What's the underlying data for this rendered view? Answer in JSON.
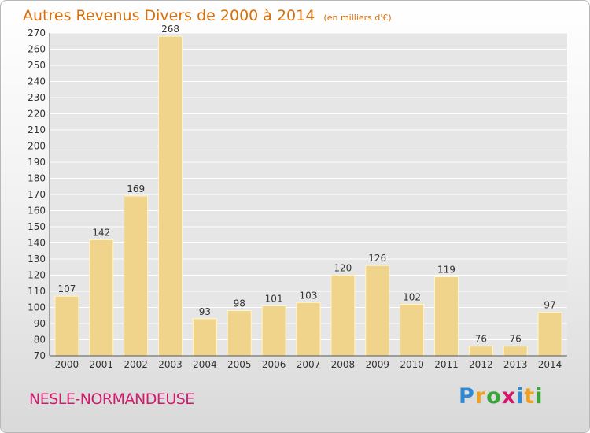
{
  "chart_data": {
    "type": "bar",
    "title": "Autres Revenus Divers de 2000 à 2014",
    "subtitle": "(en milliers d'€)",
    "categories": [
      "2000",
      "2001",
      "2002",
      "2003",
      "2004",
      "2005",
      "2006",
      "2007",
      "2008",
      "2009",
      "2010",
      "2011",
      "2012",
      "2013",
      "2014"
    ],
    "values": [
      107,
      142,
      169,
      268,
      93,
      98,
      101,
      103,
      120,
      126,
      102,
      119,
      76,
      76,
      97
    ],
    "ylim": [
      70,
      270
    ],
    "yticks": [
      70,
      80,
      90,
      100,
      110,
      120,
      130,
      140,
      150,
      160,
      170,
      180,
      190,
      200,
      210,
      220,
      230,
      240,
      250,
      260,
      270
    ],
    "grid": true,
    "data_labels": true,
    "colors": {
      "bar": "#f0d48c",
      "bar_edge": "#fff6c8",
      "grid": "#ffffff",
      "text": "#333333"
    }
  },
  "footer": {
    "place_name": "NESLE-NORMANDEUSE",
    "place_color": "#d21a6e",
    "brand": [
      "P",
      "r",
      "o",
      "x",
      "i",
      "t",
      "i"
    ],
    "brand_colors": [
      "#2d8bd6",
      "#f0a020",
      "#3aa63a",
      "#d21a6e",
      "#2d8bd6",
      "#f0a020",
      "#3aa63a"
    ]
  }
}
